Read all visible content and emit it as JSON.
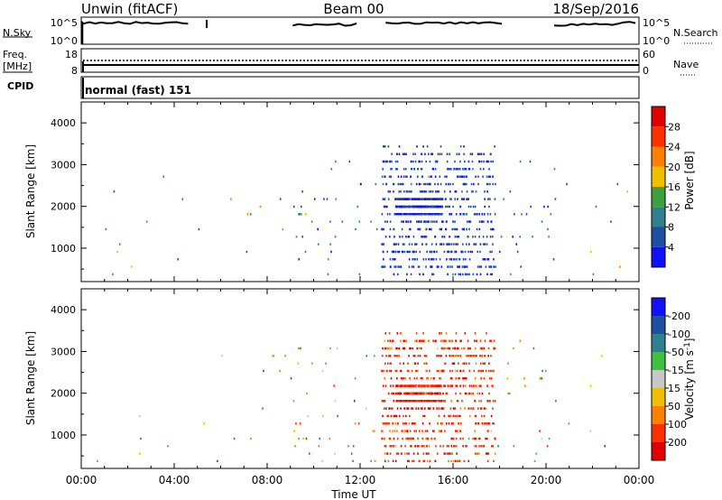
{
  "header": {
    "title": "Unwin (fitACF)",
    "beam": "Beam 00",
    "date": "18/Sep/2016"
  },
  "top_panel": {
    "left_label": "N.Sky",
    "right_label": "N.Search",
    "left_ticks": [
      "10^5",
      "10^0"
    ],
    "right_ticks": [
      "10^5",
      "10^0"
    ]
  },
  "freq_panel": {
    "left_label": "Freq.",
    "left_unit": "[MHz]",
    "right_label": "Nave",
    "left_ticks": [
      "18",
      "8"
    ],
    "right_ticks": [
      "60",
      "0"
    ]
  },
  "cpid": {
    "label": "CPID",
    "value": "normal (fast) 151"
  },
  "time_axis": {
    "label": "Time UT",
    "ticks": [
      "00:00",
      "04:00",
      "08:00",
      "12:00",
      "16:00",
      "20:00",
      "00:00"
    ]
  },
  "colors": {
    "power": [
      "#1010ff",
      "#1f4fa0",
      "#2f7f8f",
      "#3f9f3f",
      "#f0c000",
      "#ff8000",
      "#ff3000",
      "#e00000"
    ],
    "velocity": [
      "#e00000",
      "#ff3000",
      "#ff8000",
      "#f0c000",
      "#c8c8c8",
      "#40c040",
      "#2f7f8f",
      "#1f4fa0",
      "#1010ff"
    ]
  },
  "chart_data": [
    {
      "type": "scatter",
      "name": "power-panel",
      "xlabel": "Time UT",
      "ylabel": "Slant Range [km]",
      "xlim": [
        0,
        24
      ],
      "ylim": [
        200,
        4500
      ],
      "yticks": [
        "1000",
        "2000",
        "3000",
        "4000"
      ],
      "colorbar": {
        "label": "Power [dB]",
        "ticks": [
          "4",
          "8",
          "12",
          "16",
          "20",
          "24",
          "28"
        ],
        "range": [
          0,
          32
        ]
      },
      "regions": [
        {
          "t0": 12.9,
          "t1": 17.8,
          "r0": 300,
          "r1": 3400,
          "value_range": [
            2,
            8
          ],
          "count": 700
        },
        {
          "t0": 13.5,
          "t1": 15.5,
          "r0": 1700,
          "r1": 2200,
          "value_range": [
            1,
            6
          ],
          "count": 350
        },
        {
          "t0": 9.0,
          "t1": 20.5,
          "r0": 300,
          "r1": 3200,
          "value_range": [
            3,
            14
          ],
          "count": 90
        },
        {
          "t0": 0.5,
          "t1": 23.5,
          "r0": 300,
          "r1": 3000,
          "value_range": [
            4,
            22
          ],
          "count": 40
        }
      ]
    },
    {
      "type": "scatter",
      "name": "velocity-panel",
      "xlabel": "Time UT",
      "ylabel": "Slant Range [km]",
      "xlim": [
        0,
        24
      ],
      "ylim": [
        200,
        4500
      ],
      "yticks": [
        "1000",
        "2000",
        "3000",
        "4000"
      ],
      "colorbar": {
        "label": "Velocity [m s^-1]",
        "ticks": [
          "-200",
          "-100",
          "-50",
          "-15",
          "15",
          "50",
          "100",
          "200"
        ],
        "levels": [
          -250,
          -200,
          -100,
          -50,
          -15,
          15,
          50,
          100,
          200,
          250
        ]
      },
      "regions": [
        {
          "t0": 12.9,
          "t1": 17.8,
          "r0": 300,
          "r1": 3400,
          "value_range": [
            -250,
            -80
          ],
          "count": 700
        },
        {
          "t0": 13.5,
          "t1": 15.5,
          "r0": 1700,
          "r1": 2200,
          "value_range": [
            -240,
            -150
          ],
          "count": 350
        },
        {
          "t0": 9.0,
          "t1": 20.5,
          "r0": 300,
          "r1": 3200,
          "value_range": [
            -150,
            60
          ],
          "count": 90
        },
        {
          "t0": 0.5,
          "t1": 23.5,
          "r0": 300,
          "r1": 3000,
          "value_range": [
            -100,
            150
          ],
          "count": 40
        }
      ]
    }
  ]
}
